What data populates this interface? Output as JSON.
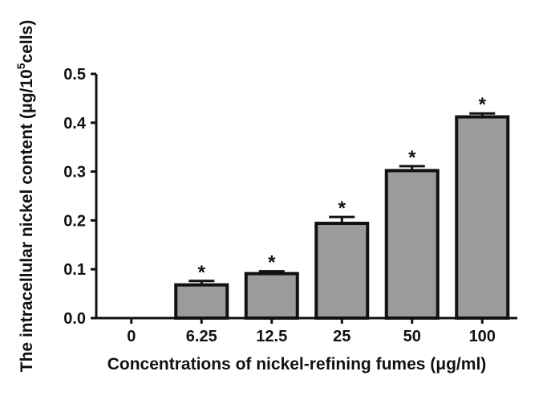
{
  "chart_data": {
    "type": "bar",
    "categories": [
      "0",
      "6.25",
      "12.5",
      "25",
      "50",
      "100"
    ],
    "values": [
      0,
      0.068,
      0.091,
      0.194,
      0.302,
      0.412
    ],
    "errors": [
      0,
      0.008,
      0.005,
      0.013,
      0.009,
      0.007
    ],
    "significance": [
      "",
      "*",
      "*",
      "*",
      "*",
      "*"
    ],
    "xlabel": "Concentrations of nickel-refining fumes (μg/ml)",
    "ylabel": {
      "prefix": "The intracellular nickel content (μg/10",
      "superscript": "5",
      "suffix": "cells)"
    },
    "ylim": [
      0,
      0.5
    ],
    "yticks": [
      "0.0",
      "0.1",
      "0.2",
      "0.3",
      "0.4",
      "0.5"
    ],
    "grid": false,
    "legend": "none",
    "colors": {
      "bar_fill": "#9a9c9b",
      "bar_edge": "#111111",
      "axis": "#111111"
    }
  }
}
